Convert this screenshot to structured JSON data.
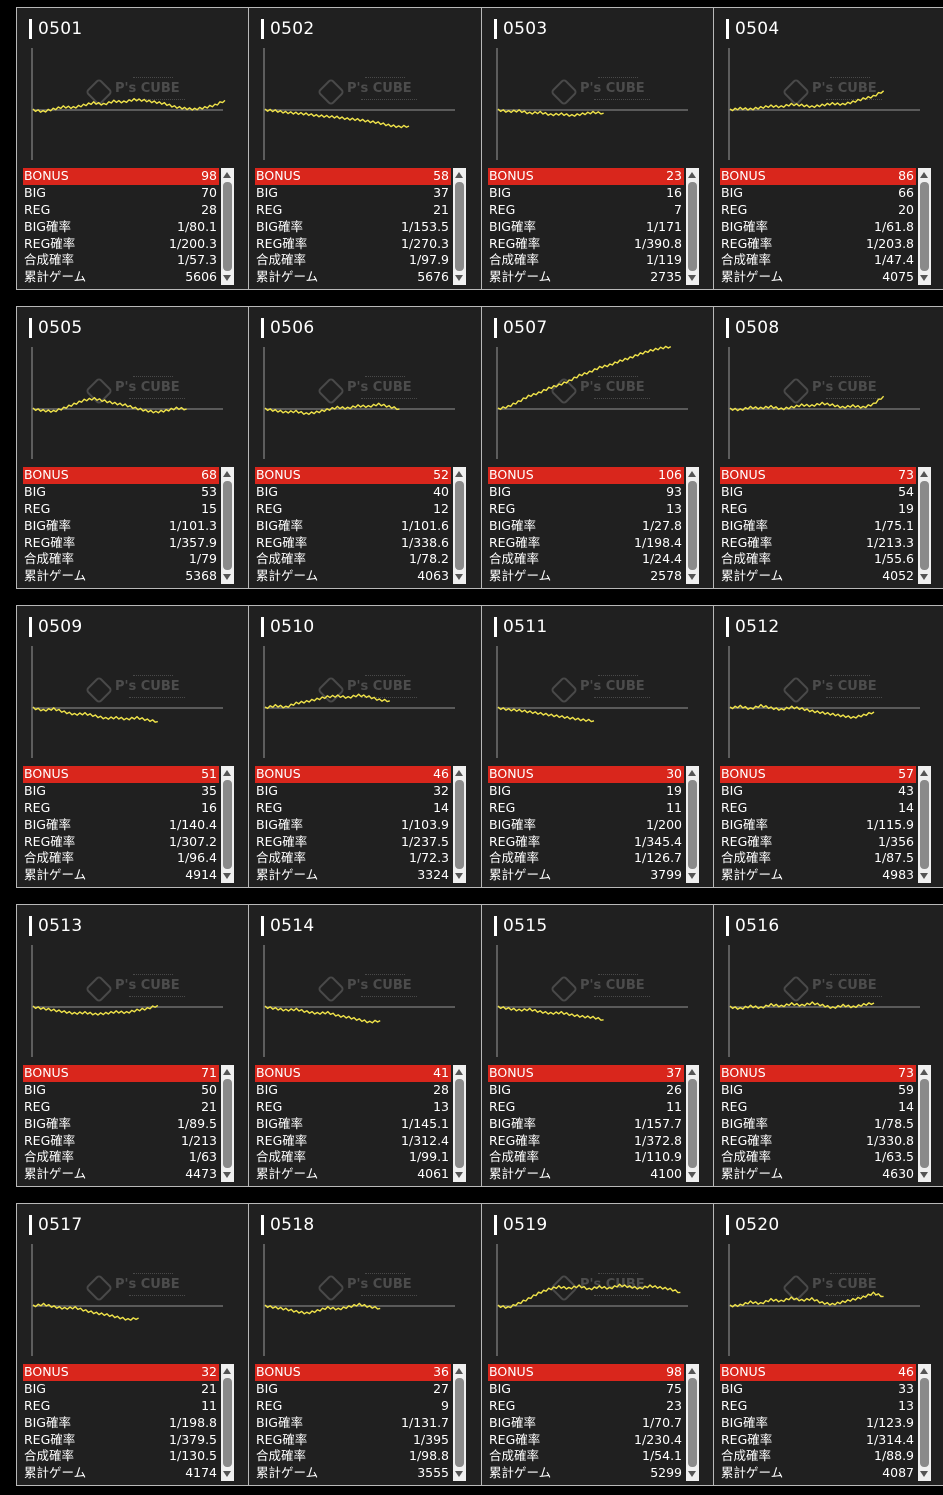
{
  "labels": {
    "bonus": "BONUS",
    "big": "BIG",
    "reg": "REG",
    "big_rate": "BIG確率",
    "reg_rate": "REG確率",
    "total_rate": "合成確率",
    "games": "累計ゲーム"
  },
  "watermark": {
    "text": "P's CUBE"
  },
  "colors": {
    "background": "#000000",
    "card": "#202020",
    "bonus_bar": "#d9261c",
    "graph_line": "#f0e34a",
    "axis": "#9a9a9a"
  },
  "machines": [
    {
      "no": "0501",
      "bonus": "98",
      "big": "70",
      "reg": "28",
      "big_rate": "1/80.1",
      "reg_rate": "1/200.3",
      "total_rate": "1/57.3",
      "games": "5606",
      "trend": [
        0,
        -0.2,
        0.1,
        0.4,
        0.3,
        0.6,
        0.9,
        0.7,
        1.1,
        1.0,
        1.3,
        1.2,
        1.0,
        0.8,
        0.4,
        0.2,
        0.1,
        0.3,
        0.6,
        1.2
      ]
    },
    {
      "no": "0502",
      "bonus": "58",
      "big": "37",
      "reg": "21",
      "big_rate": "1/153.5",
      "reg_rate": "1/270.3",
      "total_rate": "1/97.9",
      "games": "5676",
      "trend": [
        0,
        -0.1,
        -0.3,
        -0.4,
        -0.5,
        -0.7,
        -0.8,
        -0.9,
        -1.1,
        -1.2,
        -1.4,
        -1.6,
        -1.9,
        -2.1,
        -2.0
      ]
    },
    {
      "no": "0503",
      "bonus": "23",
      "big": "16",
      "reg": "7",
      "big_rate": "1/171",
      "reg_rate": "1/390.8",
      "total_rate": "1/119",
      "games": "2735",
      "trend": [
        0,
        -0.2,
        -0.1,
        -0.4,
        -0.3,
        -0.6,
        -0.5,
        -0.7,
        -0.5,
        -0.3,
        -0.4
      ]
    },
    {
      "no": "0504",
      "bonus": "86",
      "big": "66",
      "reg": "20",
      "big_rate": "1/61.8",
      "reg_rate": "1/203.8",
      "total_rate": "1/47.4",
      "games": "4075",
      "trend": [
        0,
        0.2,
        0.1,
        0.3,
        0.5,
        0.4,
        0.7,
        0.6,
        0.4,
        0.6,
        0.8,
        0.7,
        1.0,
        1.4,
        1.7,
        2.4
      ]
    },
    {
      "no": "0505",
      "bonus": "68",
      "big": "53",
      "reg": "15",
      "big_rate": "1/101.3",
      "reg_rate": "1/357.9",
      "total_rate": "1/79",
      "games": "5368",
      "trend": [
        0,
        -0.2,
        -0.3,
        0.1,
        0.6,
        1.1,
        1.3,
        1.0,
        0.7,
        0.5,
        0.1,
        -0.2,
        -0.4,
        -0.2,
        0.1,
        0.0
      ]
    },
    {
      "no": "0506",
      "bonus": "52",
      "big": "40",
      "reg": "12",
      "big_rate": "1/101.6",
      "reg_rate": "1/338.6",
      "total_rate": "1/78.2",
      "games": "4063",
      "trend": [
        0,
        -0.2,
        -0.4,
        -0.3,
        -0.6,
        -0.4,
        -0.1,
        0.2,
        0.1,
        0.4,
        0.3,
        0.6,
        0.3,
        0.0
      ]
    },
    {
      "no": "0507",
      "bonus": "106",
      "big": "93",
      "reg": "13",
      "big_rate": "1/27.8",
      "reg_rate": "1/198.4",
      "total_rate": "1/24.4",
      "games": "2578",
      "trend": [
        0,
        0.3,
        0.9,
        1.6,
        2.0,
        2.6,
        3.0,
        3.5,
        4.2,
        4.6,
        5.2,
        5.5,
        6.0,
        6.4,
        6.9,
        7.3,
        7.6,
        7.8
      ]
    },
    {
      "no": "0508",
      "bonus": "73",
      "big": "54",
      "reg": "19",
      "big_rate": "1/75.1",
      "reg_rate": "1/213.3",
      "total_rate": "1/55.6",
      "games": "4052",
      "trend": [
        0,
        -0.1,
        0.2,
        0.1,
        0.3,
        0.0,
        0.2,
        0.5,
        0.4,
        0.7,
        0.5,
        0.2,
        0.4,
        0.2,
        0.6,
        1.6
      ]
    },
    {
      "no": "0509",
      "bonus": "51",
      "big": "35",
      "reg": "16",
      "big_rate": "1/140.4",
      "reg_rate": "1/307.2",
      "total_rate": "1/96.4",
      "games": "4914",
      "trend": [
        0,
        -0.3,
        -0.1,
        -0.5,
        -0.8,
        -0.7,
        -1.0,
        -1.3,
        -1.2,
        -1.4,
        -1.2,
        -1.5,
        -1.7
      ]
    },
    {
      "no": "0510",
      "bonus": "46",
      "big": "32",
      "reg": "14",
      "big_rate": "1/103.9",
      "reg_rate": "1/237.5",
      "total_rate": "1/72.3",
      "games": "3324",
      "trend": [
        0,
        0.3,
        0.1,
        0.6,
        0.8,
        1.1,
        1.4,
        1.5,
        1.3,
        1.6,
        1.4,
        1.0,
        0.9
      ]
    },
    {
      "no": "0511",
      "bonus": "30",
      "big": "19",
      "reg": "11",
      "big_rate": "1/200",
      "reg_rate": "1/345.4",
      "total_rate": "1/126.7",
      "games": "3799",
      "trend": [
        0,
        -0.2,
        -0.3,
        -0.5,
        -0.7,
        -0.9,
        -1.1,
        -1.3,
        -1.5,
        -1.6
      ]
    },
    {
      "no": "0512",
      "bonus": "57",
      "big": "43",
      "reg": "14",
      "big_rate": "1/115.9",
      "reg_rate": "1/356",
      "total_rate": "1/87.5",
      "games": "4983",
      "trend": [
        0,
        0.2,
        -0.1,
        0.3,
        0.0,
        -0.2,
        0.1,
        -0.1,
        -0.4,
        -0.6,
        -0.8,
        -1.0,
        -1.2,
        -0.9,
        -0.5
      ]
    },
    {
      "no": "0513",
      "bonus": "71",
      "big": "50",
      "reg": "21",
      "big_rate": "1/89.5",
      "reg_rate": "1/213",
      "total_rate": "1/63",
      "games": "4473",
      "trend": [
        0,
        -0.2,
        -0.4,
        -0.6,
        -0.8,
        -0.7,
        -0.9,
        -0.8,
        -0.6,
        -0.7,
        -0.4,
        -0.2,
        0.2
      ]
    },
    {
      "no": "0514",
      "bonus": "41",
      "big": "28",
      "reg": "13",
      "big_rate": "1/145.1",
      "reg_rate": "1/312.4",
      "total_rate": "1/99.1",
      "games": "4061",
      "trend": [
        0,
        -0.2,
        -0.4,
        -0.3,
        -0.6,
        -0.8,
        -0.7,
        -1.1,
        -1.3,
        -1.6,
        -1.9,
        -1.7
      ]
    },
    {
      "no": "0515",
      "bonus": "37",
      "big": "26",
      "reg": "11",
      "big_rate": "1/157.7",
      "reg_rate": "1/372.8",
      "total_rate": "1/110.9",
      "games": "4100",
      "trend": [
        0,
        -0.2,
        -0.4,
        -0.3,
        -0.6,
        -0.8,
        -0.7,
        -1.0,
        -1.2,
        -1.3,
        -1.6
      ]
    },
    {
      "no": "0516",
      "bonus": "73",
      "big": "59",
      "reg": "14",
      "big_rate": "1/78.5",
      "reg_rate": "1/330.8",
      "total_rate": "1/63.5",
      "games": "4630",
      "trend": [
        0,
        -0.2,
        0.1,
        -0.1,
        0.3,
        0.1,
        0.4,
        0.2,
        0.5,
        0.2,
        -0.1,
        0.2,
        0.0,
        0.3,
        0.5
      ]
    },
    {
      "no": "0517",
      "bonus": "32",
      "big": "21",
      "reg": "11",
      "big_rate": "1/198.8",
      "reg_rate": "1/379.5",
      "total_rate": "1/130.5",
      "games": "4174",
      "trend": [
        0,
        0.2,
        -0.1,
        -0.3,
        -0.2,
        -0.6,
        -0.9,
        -1.1,
        -1.4,
        -1.7,
        -1.5
      ]
    },
    {
      "no": "0518",
      "bonus": "36",
      "big": "27",
      "reg": "9",
      "big_rate": "1/131.7",
      "reg_rate": "1/395",
      "total_rate": "1/98.8",
      "games": "3555",
      "trend": [
        0,
        -0.2,
        -0.4,
        -0.7,
        -0.9,
        -0.6,
        -0.2,
        -0.4,
        -0.1,
        0.2,
        -0.1,
        -0.3
      ]
    },
    {
      "no": "0519",
      "bonus": "98",
      "big": "75",
      "reg": "23",
      "big_rate": "1/70.7",
      "reg_rate": "1/230.4",
      "total_rate": "1/54.1",
      "games": "5299",
      "trend": [
        0,
        -0.2,
        0.3,
        0.9,
        1.6,
        2.1,
        2.4,
        2.2,
        2.5,
        2.1,
        2.4,
        2.2,
        2.6,
        2.4,
        2.2,
        2.5,
        2.3,
        2.1,
        1.7
      ]
    },
    {
      "no": "0520",
      "bonus": "46",
      "big": "33",
      "reg": "13",
      "big_rate": "1/123.9",
      "reg_rate": "1/314.4",
      "total_rate": "1/88.9",
      "games": "4087",
      "trend": [
        0,
        0.1,
        0.5,
        0.3,
        0.8,
        0.6,
        1.0,
        0.7,
        0.9,
        0.4,
        0.2,
        0.5,
        0.8,
        1.1,
        1.6,
        1.2
      ]
    }
  ]
}
